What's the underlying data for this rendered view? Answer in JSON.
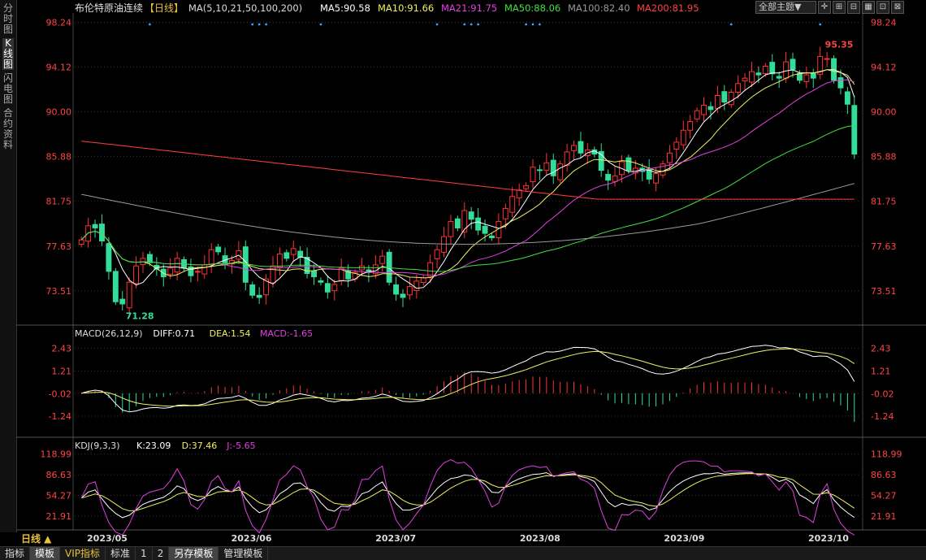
{
  "left_tabs": [
    "分时图",
    "K线图",
    "闪电图",
    "合约资料"
  ],
  "active_tab": 1,
  "header": {
    "instrument": "布伦特原油连续",
    "period_label": "【日线】",
    "ma_labels": [
      {
        "text": "MA(5,10,21,50,100,200)",
        "color": "#dddddd"
      },
      {
        "text": "MA5:90.58",
        "color": "#ffffff"
      },
      {
        "text": "MA10:91.66",
        "color": "#f0f060"
      },
      {
        "text": "MA21:91.75",
        "color": "#e040e0"
      },
      {
        "text": "MA50:88.06",
        "color": "#40e040"
      },
      {
        "text": "MA100:82.40",
        "color": "#999999"
      },
      {
        "text": "MA200:81.95",
        "color": "#ff4040"
      }
    ],
    "theme_button": "全部主题▼"
  },
  "price_axis": {
    "ticks": [
      "98.24",
      "94.12",
      "90.00",
      "85.88",
      "81.75",
      "77.63",
      "73.51"
    ],
    "max_label": "95.35",
    "min_label": "71.28"
  },
  "macd": {
    "labels": [
      {
        "text": "MACD(26,12,9)",
        "color": "#dddddd"
      },
      {
        "text": "DIFF:0.71",
        "color": "#ffffff"
      },
      {
        "text": "DEA:1.54",
        "color": "#f0f060"
      },
      {
        "text": "MACD:-1.65",
        "color": "#e040e0"
      }
    ],
    "ticks": [
      "2.43",
      "1.21",
      "-0.02",
      "-1.24"
    ]
  },
  "kdj": {
    "labels": [
      {
        "text": "KDJ(9,3,3)",
        "color": "#dddddd"
      },
      {
        "text": "K:23.09",
        "color": "#ffffff"
      },
      {
        "text": "D:37.46",
        "color": "#f0f060"
      },
      {
        "text": "J:-5.65",
        "color": "#e040e0"
      }
    ],
    "ticks": [
      "118.99",
      "86.63",
      "54.27",
      "21.91"
    ]
  },
  "x_axis": [
    "2023/05",
    "2023/06",
    "2023/07",
    "2023/08",
    "2023/09",
    "2023/10"
  ],
  "period_button": "日线 ▲",
  "bottom_tabs": [
    "指标",
    "模板",
    "VIP指标",
    "标准",
    "1",
    "2",
    "另存模板",
    "管理模板"
  ],
  "colors": {
    "up": "#ff3333",
    "down": "#33dd99",
    "grid": "#333333",
    "axis_text": "#ff4444"
  },
  "chart_data": {
    "type": "candlestick",
    "y_range": [
      70.5,
      98.8
    ],
    "ohlc_close": [
      78.2,
      79.5,
      79.3,
      78.1,
      75.3,
      72.5,
      72.3,
      74.3,
      75.8,
      76.5,
      76.1,
      75.5,
      74.8,
      75.6,
      76.5,
      75.6,
      74.9,
      75.3,
      75.9,
      77.3,
      77.1,
      76.1,
      76.3,
      77.2,
      74.3,
      73.1,
      72.9,
      74.6,
      75.8,
      76.9,
      76.5,
      77.4,
      76.6,
      75.1,
      74.8,
      74.3,
      73.4,
      74.1,
      75.6,
      74.6,
      75.2,
      75.8,
      75.2,
      75.9,
      76.7,
      74.3,
      73.2,
      72.9,
      73.9,
      74.4,
      74.7,
      76.1,
      77.3,
      78.5,
      79.9,
      79.3,
      80.9,
      80.1,
      79.1,
      78.8,
      78.4,
      79.9,
      81.1,
      82.2,
      82.8,
      83.2,
      84.9,
      84.6,
      85.3,
      84.1,
      85.2,
      86.3,
      86.9,
      86.2,
      86.5,
      86.1,
      84.6,
      83.7,
      84.1,
      85.4,
      84.6,
      84.8,
      84.5,
      83.8,
      84.3,
      85.2,
      86.2,
      87.2,
      88.3,
      89.1,
      90.1,
      90.6,
      90.2,
      91.5,
      90.9,
      91.8,
      92.6,
      93.1,
      93.7,
      93.4,
      94.2,
      93.5,
      93.1,
      94.6,
      93.9,
      92.9,
      93.4,
      93.1,
      95.1,
      94.9,
      92.9,
      92.2,
      90.7,
      86.1
    ],
    "price_min": 71.28,
    "price_max": 95.35,
    "ma": {
      "MA5": 90.58,
      "MA10": 91.66,
      "MA21": 91.75,
      "MA50": 88.06,
      "MA100": 82.4,
      "MA200": 81.95
    },
    "macd": {
      "DIFF": 0.71,
      "DEA": 1.54,
      "MACD": -1.65
    },
    "kdj": {
      "K": 23.09,
      "D": 37.46,
      "J": -5.65
    }
  }
}
